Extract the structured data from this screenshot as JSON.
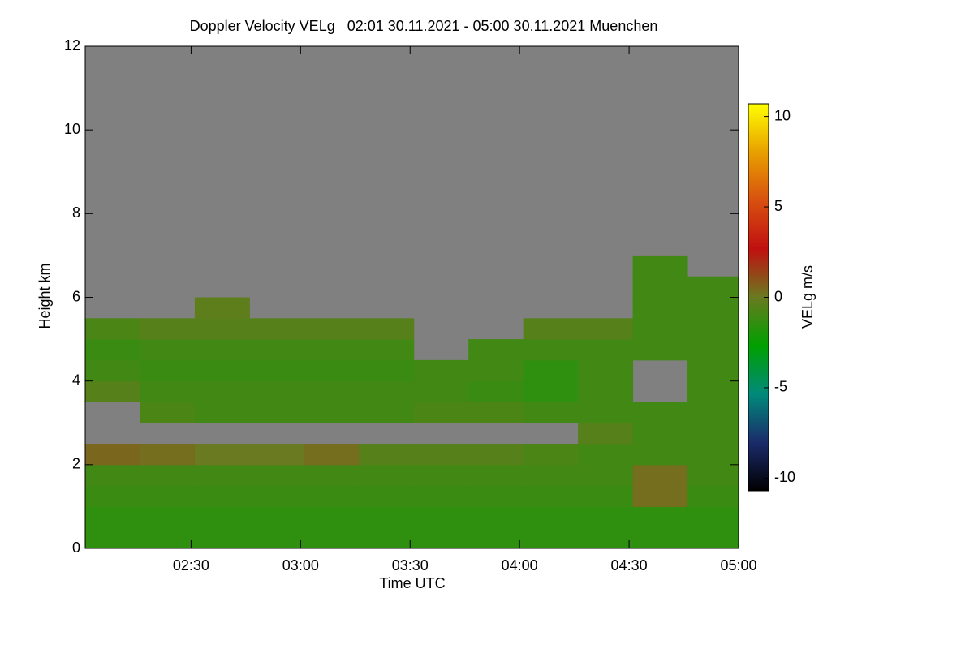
{
  "chart_data": {
    "type": "heatmap",
    "title": "Doppler Velocity VELg   02:01 30.11.2021 - 05:00 30.11.2021 Muenchen",
    "x_label": "Time UTC",
    "y_label": "Height km",
    "colorbar_label": "VELg m/s",
    "xlim": [
      121,
      300
    ],
    "xticks": [
      {
        "value": 150,
        "label": "02:30"
      },
      {
        "value": 180,
        "label": "03:00"
      },
      {
        "value": 210,
        "label": "03:30"
      },
      {
        "value": 240,
        "label": "04:00"
      },
      {
        "value": 270,
        "label": "04:30"
      },
      {
        "value": 300,
        "label": "05:00"
      }
    ],
    "ylim": [
      0,
      12
    ],
    "yticks": [
      0,
      2,
      4,
      6,
      8,
      10,
      12
    ],
    "clim": [
      -10.7,
      10.7
    ],
    "cticks": [
      -10,
      -5,
      0,
      5,
      10
    ],
    "colormap": [
      "#000000",
      "#1b2b6b",
      "#008a7a",
      "#00a000",
      "#6a7a20",
      "#c01010",
      "#d85010",
      "#e8a000",
      "#ffff00"
    ],
    "nan_color": "#808080",
    "x": [
      128.5,
      143.5,
      158.5,
      173.5,
      188.5,
      203.5,
      218.5,
      233.5,
      248.5,
      263.5,
      278.5,
      293.5
    ],
    "y": [
      0.25,
      0.75,
      1.25,
      1.75,
      2.25,
      2.75,
      3.25,
      3.75,
      4.25,
      4.75,
      5.25,
      5.75,
      6.25,
      6.75,
      7.25,
      7.75,
      8.25,
      8.75,
      9.25,
      9.75,
      10.25,
      10.75,
      11.25,
      11.75
    ],
    "values": [
      [
        -1.5,
        -1.5,
        -1.5,
        -1.5,
        -1.5,
        -1.5,
        -1.5,
        -1.5,
        -1.5,
        -1.5,
        -1.5,
        -1.5
      ],
      [
        -1.5,
        -1.5,
        -1.5,
        -1.5,
        -1.5,
        -1.5,
        -1.5,
        -1.5,
        -1.5,
        -1.5,
        -1.5,
        -1.5
      ],
      [
        -1.2,
        -1.2,
        -1.2,
        -1.2,
        -1.2,
        -1.2,
        -1.2,
        -1.2,
        -1.2,
        -1.2,
        0.3,
        -1.2
      ],
      [
        -1,
        -1,
        -1,
        -1,
        -1,
        -1,
        -1,
        -1,
        -1,
        -1,
        0.3,
        -1
      ],
      [
        0.5,
        0.3,
        0,
        0,
        0.3,
        -0.5,
        -0.5,
        -0.5,
        -0.8,
        -1,
        -1,
        -1
      ],
      [
        null,
        null,
        null,
        null,
        null,
        null,
        null,
        null,
        null,
        -0.5,
        -1,
        -1
      ],
      [
        null,
        -0.8,
        -1,
        -1,
        -1,
        -1,
        -0.8,
        -0.8,
        -1,
        -1,
        -1,
        -1
      ],
      [
        -0.5,
        -1,
        -1,
        -1,
        -1,
        -1,
        -1,
        -1.2,
        -1.5,
        -1,
        null,
        -1
      ],
      [
        -1,
        -1.2,
        -1.2,
        -1.2,
        -1.2,
        -1.2,
        -1,
        -1,
        -1.5,
        -1,
        null,
        -1
      ],
      [
        -1.2,
        -1,
        -1,
        -1,
        -1,
        -1,
        null,
        -1,
        -1,
        -1,
        -1,
        -1
      ],
      [
        -0.8,
        -0.5,
        -0.5,
        -0.5,
        -0.5,
        -0.5,
        null,
        null,
        -0.5,
        -0.5,
        -1,
        -1
      ],
      [
        null,
        null,
        -0.3,
        null,
        null,
        null,
        null,
        null,
        null,
        null,
        -1,
        -1
      ],
      [
        null,
        null,
        null,
        null,
        null,
        null,
        null,
        null,
        null,
        null,
        -1,
        -1
      ],
      [
        null,
        null,
        null,
        null,
        null,
        null,
        null,
        null,
        null,
        null,
        -1,
        null
      ],
      [
        null,
        null,
        null,
        null,
        null,
        null,
        null,
        null,
        null,
        null,
        null,
        null
      ],
      [
        null,
        null,
        null,
        null,
        null,
        null,
        null,
        null,
        null,
        null,
        null,
        null
      ],
      [
        null,
        null,
        null,
        null,
        null,
        null,
        null,
        null,
        null,
        null,
        null,
        null
      ],
      [
        null,
        null,
        null,
        null,
        null,
        null,
        null,
        null,
        null,
        null,
        null,
        null
      ],
      [
        null,
        null,
        null,
        null,
        null,
        null,
        null,
        null,
        null,
        null,
        null,
        null
      ],
      [
        null,
        null,
        null,
        null,
        null,
        null,
        null,
        null,
        null,
        null,
        null,
        null
      ],
      [
        null,
        null,
        null,
        null,
        null,
        null,
        null,
        null,
        null,
        null,
        null,
        null
      ],
      [
        null,
        null,
        null,
        null,
        null,
        null,
        null,
        null,
        null,
        null,
        null,
        null
      ],
      [
        null,
        null,
        null,
        null,
        null,
        null,
        null,
        null,
        null,
        null,
        null,
        null
      ],
      [
        null,
        null,
        null,
        null,
        null,
        null,
        null,
        null,
        null,
        null,
        null,
        null
      ]
    ]
  }
}
